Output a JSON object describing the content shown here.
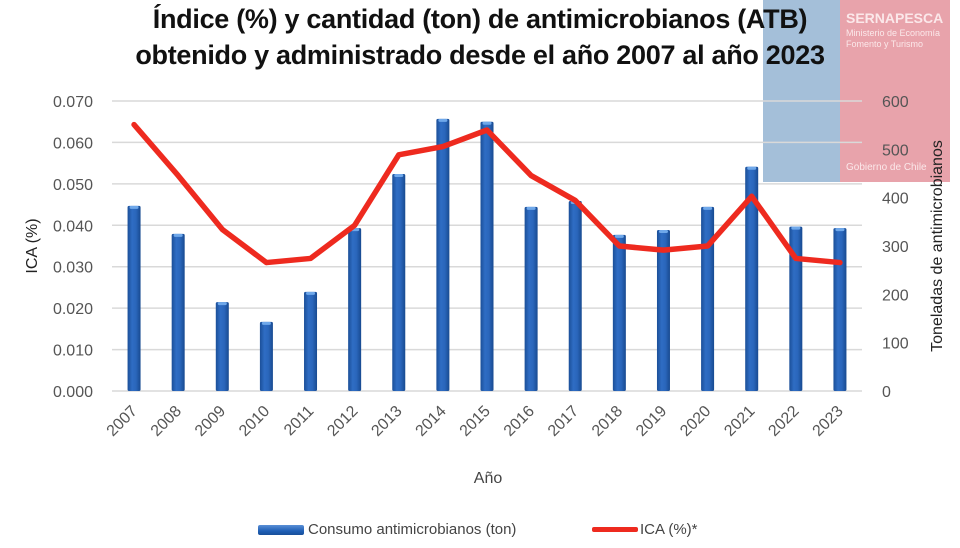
{
  "logo": {
    "brand": "SERNAPESCA",
    "subtitle": "Ministerio de Economía Fomento y Turismo",
    "government": "Gobierno de Chile"
  },
  "chart_data": {
    "type": "bar+line",
    "title": "Índice (%) y cantidad (ton) de antimicrobianos (ATB)",
    "subtitle": "obtenido y administrado desde el año 2007 al año 2023",
    "xlabel": "Año",
    "ylabel_left": "ICA (%)",
    "ylabel_right": "Toneladas de  antimicrobianos",
    "categories": [
      "2007",
      "2008",
      "2009",
      "2010",
      "2011",
      "2012",
      "2013",
      "2014",
      "2015",
      "2016",
      "2017",
      "2018",
      "2019",
      "2020",
      "2021",
      "2022",
      "2023"
    ],
    "y_left": {
      "min": 0,
      "max": 0.07,
      "ticks": [
        "0.000",
        "0.010",
        "0.020",
        "0.030",
        "0.040",
        "0.050",
        "0.060",
        "0.070"
      ]
    },
    "y_right": {
      "min": 0,
      "max": 600,
      "ticks": [
        "0",
        "100",
        "200",
        "300",
        "400",
        "500",
        "600"
      ]
    },
    "grid": true,
    "legend_position": "bottom",
    "series": [
      {
        "name": "Consumo antimicrobianos (ton)",
        "type": "bar",
        "axis": "right",
        "color": "#2563b8",
        "values": [
          383,
          325,
          184,
          143,
          205,
          337,
          449,
          563,
          557,
          381,
          393,
          323,
          333,
          381,
          464,
          340,
          337
        ]
      },
      {
        "name": "ICA (%)*",
        "type": "line",
        "axis": "left",
        "color": "#ee2a1f",
        "values": [
          0.0643,
          0.052,
          0.039,
          0.031,
          0.032,
          0.04,
          0.057,
          0.059,
          0.063,
          0.052,
          0.046,
          0.035,
          0.034,
          0.035,
          0.047,
          0.032,
          0.031
        ]
      }
    ]
  }
}
